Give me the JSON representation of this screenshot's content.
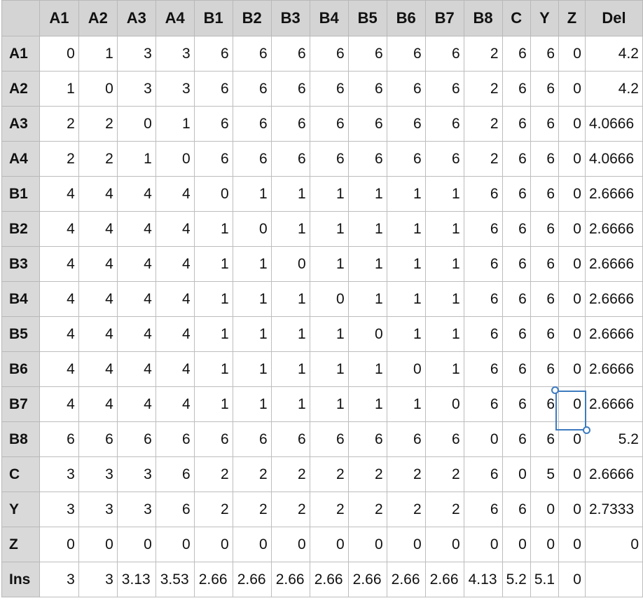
{
  "columns": [
    "",
    "A1",
    "A2",
    "A3",
    "A4",
    "B1",
    "B2",
    "B3",
    "B4",
    "B5",
    "B6",
    "B7",
    "B8",
    "C",
    "Y",
    "Z",
    "Del"
  ],
  "rows": [
    {
      "label": "A1",
      "cells": [
        "0",
        "1",
        "3",
        "3",
        "6",
        "6",
        "6",
        "6",
        "6",
        "6",
        "6",
        "2",
        "6",
        "6",
        "0",
        "4.2"
      ]
    },
    {
      "label": "A2",
      "cells": [
        "1",
        "0",
        "3",
        "3",
        "6",
        "6",
        "6",
        "6",
        "6",
        "6",
        "6",
        "2",
        "6",
        "6",
        "0",
        "4.2"
      ]
    },
    {
      "label": "A3",
      "cells": [
        "2",
        "2",
        "0",
        "1",
        "6",
        "6",
        "6",
        "6",
        "6",
        "6",
        "6",
        "2",
        "6",
        "6",
        "0",
        "4.0666"
      ]
    },
    {
      "label": "A4",
      "cells": [
        "2",
        "2",
        "1",
        "0",
        "6",
        "6",
        "6",
        "6",
        "6",
        "6",
        "6",
        "2",
        "6",
        "6",
        "0",
        "4.0666"
      ]
    },
    {
      "label": "B1",
      "cells": [
        "4",
        "4",
        "4",
        "4",
        "0",
        "1",
        "1",
        "1",
        "1",
        "1",
        "1",
        "6",
        "6",
        "6",
        "0",
        "2.6666"
      ]
    },
    {
      "label": "B2",
      "cells": [
        "4",
        "4",
        "4",
        "4",
        "1",
        "0",
        "1",
        "1",
        "1",
        "1",
        "1",
        "6",
        "6",
        "6",
        "0",
        "2.6666"
      ]
    },
    {
      "label": "B3",
      "cells": [
        "4",
        "4",
        "4",
        "4",
        "1",
        "1",
        "0",
        "1",
        "1",
        "1",
        "1",
        "6",
        "6",
        "6",
        "0",
        "2.6666"
      ]
    },
    {
      "label": "B4",
      "cells": [
        "4",
        "4",
        "4",
        "4",
        "1",
        "1",
        "1",
        "0",
        "1",
        "1",
        "1",
        "6",
        "6",
        "6",
        "0",
        "2.6666"
      ]
    },
    {
      "label": "B5",
      "cells": [
        "4",
        "4",
        "4",
        "4",
        "1",
        "1",
        "1",
        "1",
        "0",
        "1",
        "1",
        "6",
        "6",
        "6",
        "0",
        "2.6666"
      ]
    },
    {
      "label": "B6",
      "cells": [
        "4",
        "4",
        "4",
        "4",
        "1",
        "1",
        "1",
        "1",
        "1",
        "0",
        "1",
        "6",
        "6",
        "6",
        "0",
        "2.6666"
      ]
    },
    {
      "label": "B7",
      "cells": [
        "4",
        "4",
        "4",
        "4",
        "1",
        "1",
        "1",
        "1",
        "1",
        "1",
        "0",
        "6",
        "6",
        "6",
        "0",
        "2.6666"
      ]
    },
    {
      "label": "B8",
      "cells": [
        "6",
        "6",
        "6",
        "6",
        "6",
        "6",
        "6",
        "6",
        "6",
        "6",
        "6",
        "0",
        "6",
        "6",
        "0",
        "5.2"
      ]
    },
    {
      "label": "C",
      "cells": [
        "3",
        "3",
        "3",
        "6",
        "2",
        "2",
        "2",
        "2",
        "2",
        "2",
        "2",
        "6",
        "0",
        "5",
        "0",
        "2.6666"
      ]
    },
    {
      "label": "Y",
      "cells": [
        "3",
        "3",
        "3",
        "6",
        "2",
        "2",
        "2",
        "2",
        "2",
        "2",
        "2",
        "6",
        "6",
        "0",
        "0",
        "2.7333"
      ]
    },
    {
      "label": "Z",
      "cells": [
        "0",
        "0",
        "0",
        "0",
        "0",
        "0",
        "0",
        "0",
        "0",
        "0",
        "0",
        "0",
        "0",
        "0",
        "0",
        "0"
      ]
    }
  ],
  "ins_row": {
    "label": "Ins",
    "cells": [
      "3",
      "3",
      "3.13",
      "3.53",
      "2.66",
      "2.66",
      "2.66",
      "2.66",
      "2.66",
      "2.66",
      "2.66",
      "4.13",
      "5.2",
      "5.1",
      "0",
      ""
    ]
  },
  "selection": {
    "row": "B7",
    "column": "Z",
    "value": "0"
  }
}
